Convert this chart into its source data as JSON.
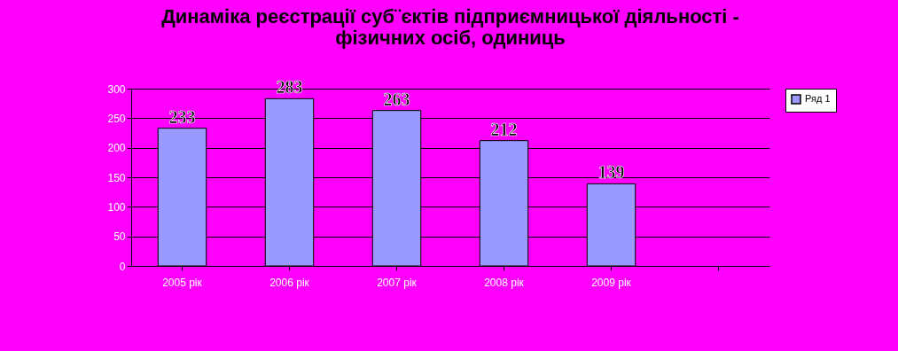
{
  "chart_data": {
    "type": "bar",
    "title": [
      "Динаміка реєстрації суб¨єктів підприємницької діяльності -",
      "фізичних осіб, одиниць"
    ],
    "categories": [
      "2005 рік",
      "2006 рік",
      "2007 рік",
      "2008 рік",
      "2009 рік",
      null
    ],
    "series": [
      {
        "name": "Ряд 1",
        "color": "#9999ff",
        "values": [
          233,
          283,
          263,
          212,
          139,
          null
        ]
      }
    ],
    "ylim": [
      0,
      300
    ],
    "yticks": [
      0,
      50,
      100,
      150,
      200,
      250,
      300
    ],
    "grid": "y",
    "legend": "right",
    "data_labels": true
  }
}
